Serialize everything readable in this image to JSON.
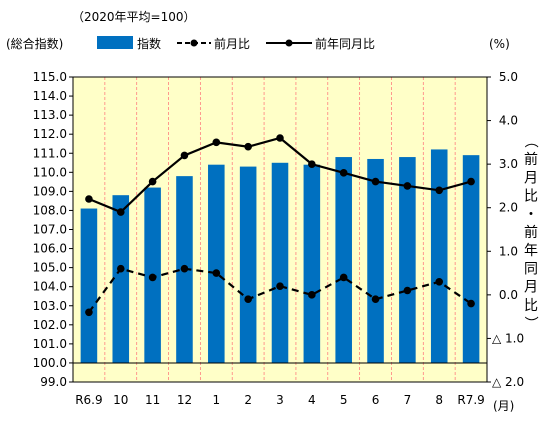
{
  "chart_data": {
    "type": "bar",
    "note": "（2020年平均=100）",
    "legend": {
      "group_label": "(総合指数)",
      "items": [
        {
          "label": "指数",
          "kind": "bar"
        },
        {
          "label": "前月比",
          "kind": "dashed-line"
        },
        {
          "label": "前年同月比",
          "kind": "line"
        }
      ]
    },
    "categories": [
      "R6.9",
      "10",
      "11",
      "12",
      "1",
      "2",
      "3",
      "4",
      "5",
      "6",
      "7",
      "8",
      "R7.9"
    ],
    "x_unit": "(月)",
    "y_left": {
      "min": 99.0,
      "max": 115.0,
      "baseline": 100.0,
      "ticks": [
        "99.0",
        "100.0",
        "101.0",
        "102.0",
        "103.0",
        "104.0",
        "105.0",
        "106.0",
        "107.0",
        "108.0",
        "109.0",
        "110.0",
        "111.0",
        "112.0",
        "113.0",
        "114.0",
        "115.0"
      ]
    },
    "y_right": {
      "min": -2.0,
      "max": 5.0,
      "unit": "(%)",
      "title": "（前月比・前年同月比）",
      "ticks": [
        {
          "v": 5.0,
          "label": "5.0"
        },
        {
          "v": 4.0,
          "label": "4.0"
        },
        {
          "v": 3.0,
          "label": "3.0"
        },
        {
          "v": 2.0,
          "label": "2.0"
        },
        {
          "v": 1.0,
          "label": "1.0"
        },
        {
          "v": 0.0,
          "label": "0.0"
        },
        {
          "v": -1.0,
          "label": "△ 1.0"
        },
        {
          "v": -2.0,
          "label": "△ 2.0"
        }
      ]
    },
    "series": [
      {
        "name": "指数",
        "axis": "left",
        "type": "bar",
        "values": [
          108.1,
          108.8,
          109.2,
          109.8,
          110.4,
          110.3,
          110.5,
          110.4,
          110.8,
          110.7,
          110.8,
          111.2,
          110.9
        ]
      },
      {
        "name": "前月比",
        "axis": "right",
        "type": "line",
        "style": "dashed",
        "values": [
          -0.4,
          0.6,
          0.4,
          0.6,
          0.5,
          -0.1,
          0.2,
          0.0,
          0.4,
          -0.1,
          0.1,
          0.3,
          -0.2
        ]
      },
      {
        "name": "前年同月比",
        "axis": "right",
        "type": "line",
        "style": "solid",
        "values": [
          2.2,
          1.9,
          2.6,
          3.2,
          3.5,
          3.4,
          3.6,
          3.0,
          2.8,
          2.6,
          2.5,
          2.4,
          2.6
        ]
      }
    ],
    "colors": {
      "plot_bg": "#ffffc8",
      "bar": "#0070c0",
      "line": "#000000",
      "grid_v": "#ff7f7f"
    }
  }
}
